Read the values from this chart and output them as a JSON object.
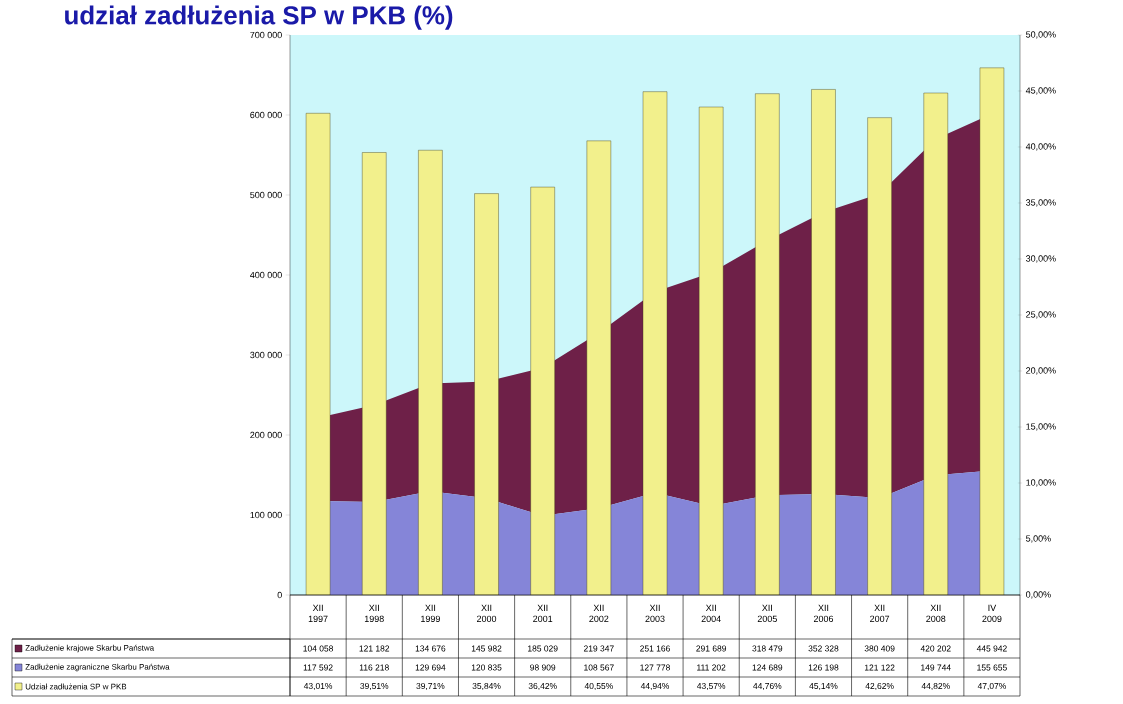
{
  "chart_data": {
    "type": "area",
    "title": "udział zadłużenia SP w PKB (%)",
    "categories": [
      "XII 1997",
      "XII 1998",
      "XII 1999",
      "XII 2000",
      "XII 2001",
      "XII 2002",
      "XII 2003",
      "XII 2004",
      "XII 2005",
      "XII 2006",
      "XII 2007",
      "XII 2008",
      "IV 2009"
    ],
    "stacked": true,
    "series": [
      {
        "name": "Zadłużenie zagraniczne Skarbu Państwa",
        "color": "#8585d8",
        "values": [
          117592,
          116218,
          129694,
          120835,
          98909,
          108567,
          127778,
          111202,
          124689,
          126198,
          121122,
          149744,
          155655
        ],
        "value_labels": [
          "117 592",
          "116 218",
          "129 694",
          "120 835",
          "98 909",
          "108 567",
          "127 778",
          "111 202",
          "124 689",
          "126 198",
          "121 122",
          "149 744",
          "155 655"
        ]
      },
      {
        "name": "Zadłużenie krajowe Skarbu Państwa",
        "color": "#6e2048",
        "values": [
          104058,
          121182,
          134676,
          145982,
          185029,
          219347,
          251166,
          291689,
          318479,
          352328,
          380409,
          420202,
          445942
        ],
        "value_labels": [
          "104 058",
          "121 182",
          "134 676",
          "145 982",
          "185 029",
          "219 347",
          "251 166",
          "291 689",
          "318 479",
          "352 328",
          "380 409",
          "420 202",
          "445 942"
        ]
      },
      {
        "name": "Udział zadłużenia SP w PKB",
        "type": "bar",
        "axis": "y2",
        "color": "#f2f08c",
        "values": [
          43.01,
          39.51,
          39.71,
          35.84,
          36.42,
          40.55,
          44.94,
          43.57,
          44.76,
          45.14,
          42.62,
          44.82,
          47.07
        ],
        "value_labels": [
          "43,01%",
          "39,51%",
          "39,71%",
          "35,84%",
          "36,42%",
          "40,55%",
          "44,94%",
          "43,57%",
          "44,76%",
          "45,14%",
          "42,62%",
          "44,82%",
          "47,07%"
        ]
      }
    ],
    "ylim": [
      0,
      700000
    ],
    "yticks": [
      {
        "value": 0,
        "label": "0"
      },
      {
        "value": 100000,
        "label": "100 000"
      },
      {
        "value": 200000,
        "label": "200 000"
      },
      {
        "value": 300000,
        "label": "300 000"
      },
      {
        "value": 400000,
        "label": "400 000"
      },
      {
        "value": 500000,
        "label": "500 000"
      },
      {
        "value": 600000,
        "label": "600 000"
      },
      {
        "value": 700000,
        "label": "700 000"
      }
    ],
    "y2lim": [
      0,
      50
    ],
    "y2ticks": [
      {
        "value": 0,
        "label": "0,00%"
      },
      {
        "value": 5,
        "label": "5,00%"
      },
      {
        "value": 10,
        "label": "10,00%"
      },
      {
        "value": 15,
        "label": "15,00%"
      },
      {
        "value": 20,
        "label": "20,00%"
      },
      {
        "value": 25,
        "label": "25,00%"
      },
      {
        "value": 30,
        "label": "30,00%"
      },
      {
        "value": 35,
        "label": "35,00%"
      },
      {
        "value": 40,
        "label": "40,00%"
      },
      {
        "value": 45,
        "label": "45,00%"
      },
      {
        "value": 50,
        "label": "50,00%"
      }
    ],
    "legend": "bottom",
    "grid": false
  }
}
